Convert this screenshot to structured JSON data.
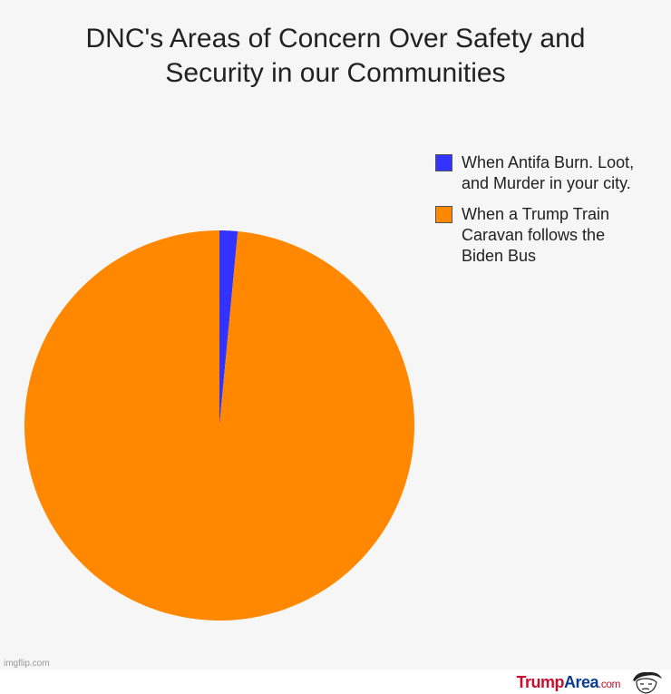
{
  "chart_data": {
    "type": "pie",
    "title": "DNC's Areas of Concern Over Safety and\nSecurity in our Communities",
    "legend_position": "top-right",
    "slices": [
      {
        "label": "When Antifa Burn. Loot,\nand Murder in your city.",
        "value": 1.5,
        "color": "#3333ff"
      },
      {
        "label": "When a Trump Train\nCaravan follows the\nBiden Bus",
        "value": 98.5,
        "color": "#ff8800"
      }
    ]
  },
  "watermark": "imgflip.com",
  "footer": {
    "brand_part1": "Trump",
    "brand_part2": "Area",
    "brand_part3": ".com",
    "logo_icon": "trump-face-icon"
  },
  "colors": {
    "background": "#f6f6f6",
    "antifa_slice": "#3333ff",
    "trump_slice": "#ff8800"
  }
}
